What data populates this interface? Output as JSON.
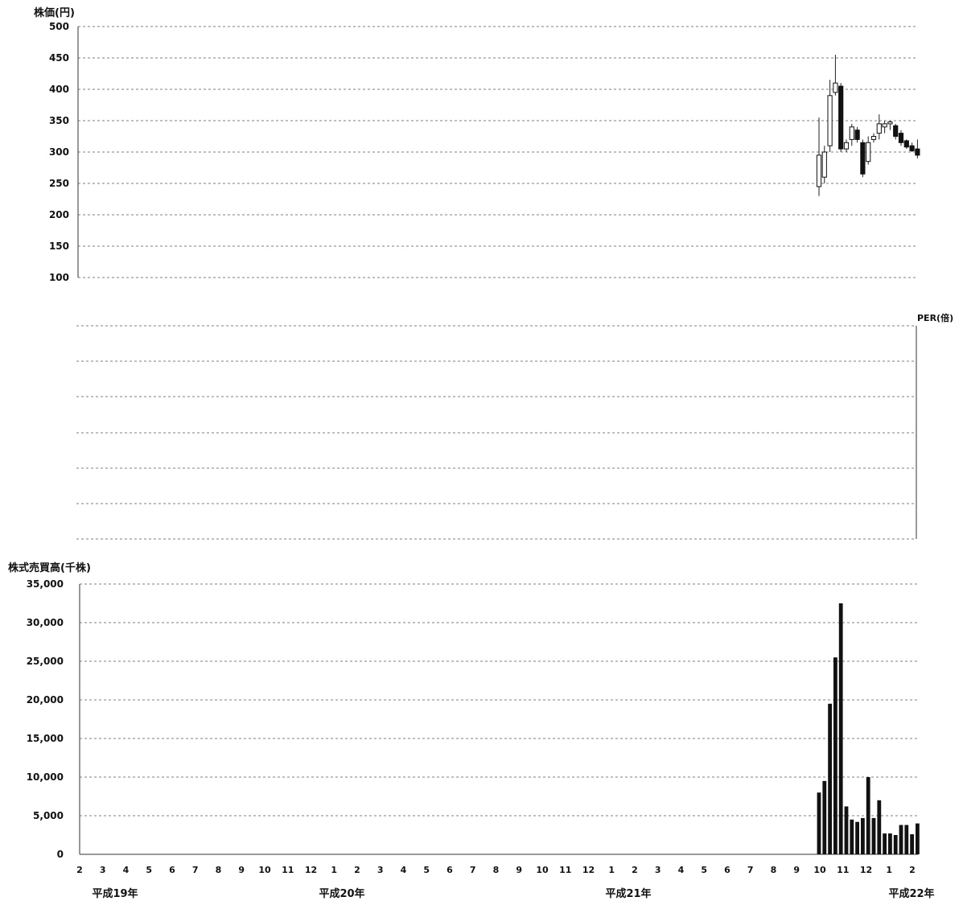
{
  "chart_data": [
    {
      "type": "candlestick",
      "ylabel": "株価(円)",
      "ylim": [
        100,
        500
      ],
      "yticks": [
        "500",
        "450",
        "400",
        "350",
        "300",
        "250",
        "200",
        "150",
        "100"
      ],
      "grid": true,
      "candles": [
        {
          "date": "平成21年10月 第2週",
          "open": 245,
          "high": 355,
          "low": 230,
          "close": 295
        },
        {
          "date": "平成21年10月 第3週",
          "open": 260,
          "high": 310,
          "low": 250,
          "close": 300
        },
        {
          "date": "平成21年10月 第4週",
          "open": 310,
          "high": 415,
          "low": 300,
          "close": 390
        },
        {
          "date": "平成21年10月 第5週",
          "open": 395,
          "high": 455,
          "low": 390,
          "close": 410
        },
        {
          "date": "平成21年11月 第1週",
          "open": 405,
          "high": 410,
          "low": 300,
          "close": 305
        },
        {
          "date": "平成21年11月 第2週",
          "open": 305,
          "high": 320,
          "low": 300,
          "close": 315
        },
        {
          "date": "平成21年11月 第3週",
          "open": 320,
          "high": 345,
          "low": 310,
          "close": 340
        },
        {
          "date": "平成21年11月 第4週",
          "open": 335,
          "high": 340,
          "low": 315,
          "close": 320
        },
        {
          "date": "平成21年12月 第1週",
          "open": 315,
          "high": 320,
          "low": 260,
          "close": 265
        },
        {
          "date": "平成21年12月 第2週",
          "open": 285,
          "high": 325,
          "low": 280,
          "close": 315
        },
        {
          "date": "平成21年12月 第3週",
          "open": 320,
          "high": 330,
          "low": 315,
          "close": 325
        },
        {
          "date": "平成21年12月 第4週",
          "open": 330,
          "high": 360,
          "low": 320,
          "close": 345
        },
        {
          "date": "平成22年1月 第1週",
          "open": 340,
          "high": 350,
          "low": 330,
          "close": 345
        },
        {
          "date": "平成22年1月 第2週",
          "open": 345,
          "high": 350,
          "low": 335,
          "close": 348
        },
        {
          "date": "平成22年1月 第3週",
          "open": 342,
          "high": 345,
          "low": 320,
          "close": 325
        },
        {
          "date": "平成22年1月 第4週",
          "open": 330,
          "high": 335,
          "low": 310,
          "close": 315
        },
        {
          "date": "平成22年2月 第1週",
          "open": 318,
          "high": 320,
          "low": 305,
          "close": 308
        },
        {
          "date": "平成22年2月 第2週",
          "open": 310,
          "high": 315,
          "low": 300,
          "close": 302
        },
        {
          "date": "平成22年2月 第3週",
          "open": 305,
          "high": 320,
          "low": 290,
          "close": 295
        }
      ]
    },
    {
      "type": "line",
      "ylabel": "PER(倍)",
      "grid": true,
      "series": []
    },
    {
      "type": "bar",
      "ylabel": "株式売買高(千株)",
      "ylim": [
        0,
        35000
      ],
      "yticks": [
        "35,000",
        "30,000",
        "25,000",
        "20,000",
        "15,000",
        "10,000",
        "5,000",
        "0"
      ],
      "grid": true,
      "values": [
        8000,
        9500,
        19500,
        25500,
        32500,
        6200,
        4500,
        4200,
        4700,
        10000,
        4700,
        7000,
        2700,
        2700,
        2500,
        3800,
        3800,
        2600,
        4000
      ]
    }
  ],
  "x_axis": {
    "months": [
      "2",
      "3",
      "4",
      "5",
      "6",
      "7",
      "8",
      "9",
      "10",
      "11",
      "12",
      "1",
      "2",
      "3",
      "4",
      "5",
      "6",
      "7",
      "8",
      "9",
      "10",
      "11",
      "12",
      "1",
      "2",
      "3",
      "4",
      "5",
      "6",
      "7",
      "8",
      "9",
      "10",
      "11",
      "12",
      "1",
      "2"
    ],
    "years": [
      "平成19年",
      "平成20年",
      "平成21年",
      "平成22年"
    ]
  }
}
